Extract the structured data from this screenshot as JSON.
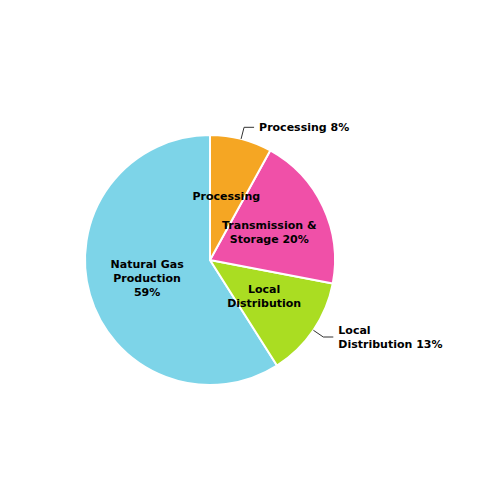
{
  "chart_data": {
    "type": "pie",
    "categories": [
      "Natural Gas\nProduction\n59%",
      "Local\nDistribution",
      "Transmission &\nStorage 20%",
      "Processing"
    ],
    "values": [
      59,
      13,
      20,
      8
    ],
    "colors": [
      "#7dd4e8",
      "#aadd22",
      "#f050a8",
      "#f5a623"
    ],
    "annotations": [
      {
        "text": "Processing 8%",
        "slice": "Processing"
      },
      {
        "text": "Local\nDistribution 13%",
        "slice": "Local\nDistribution"
      }
    ],
    "legend": false
  }
}
